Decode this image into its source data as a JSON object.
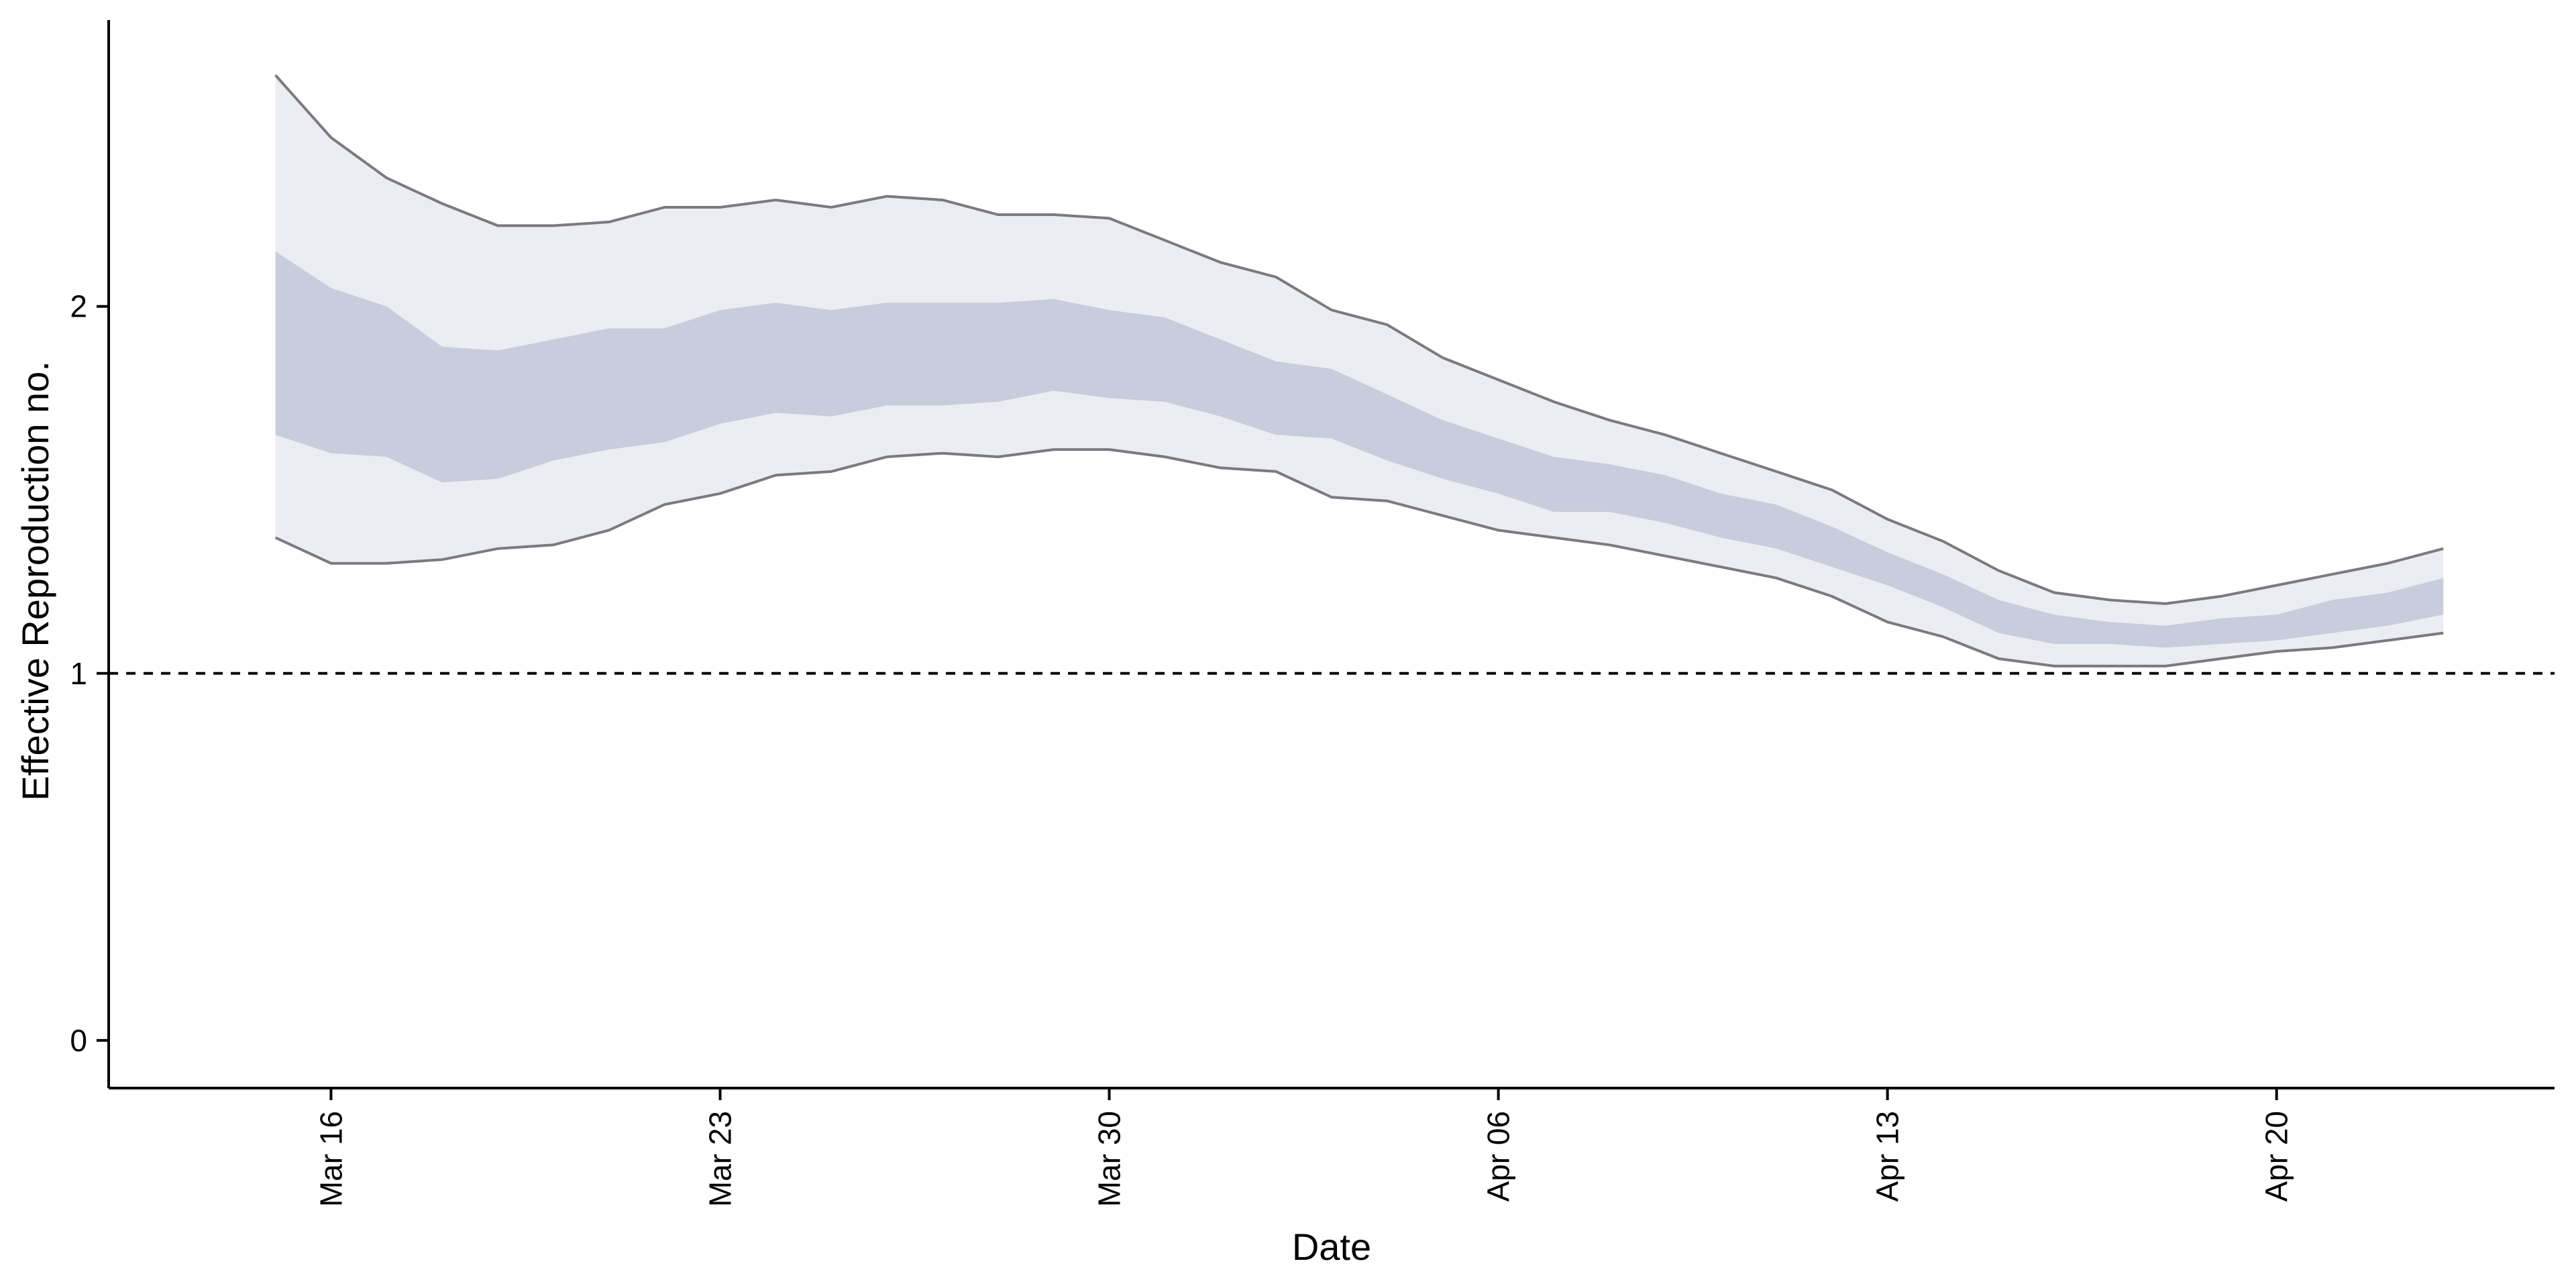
{
  "chart_data": {
    "type": "area",
    "title": "",
    "xlabel": "Date",
    "ylabel": "Effective Reproduction no.",
    "x_ticks": [
      {
        "date": "2020-03-16",
        "label": "Mar 16"
      },
      {
        "date": "2020-03-23",
        "label": "Mar 23"
      },
      {
        "date": "2020-03-30",
        "label": "Mar 30"
      },
      {
        "date": "2020-04-06",
        "label": "Apr 06"
      },
      {
        "date": "2020-04-13",
        "label": "Apr 13"
      },
      {
        "date": "2020-04-20",
        "label": "Apr 20"
      }
    ],
    "y_ticks": [
      {
        "value": 0,
        "label": "0"
      },
      {
        "value": 1,
        "label": "1"
      },
      {
        "value": 2,
        "label": "2"
      }
    ],
    "xlim": [
      "2020-03-12",
      "2020-04-25"
    ],
    "ylim": [
      -0.13,
      2.78
    ],
    "reference_line": {
      "y": 1,
      "style": "dashed"
    },
    "grid": false,
    "colors": {
      "outer_band": "#ecedf2",
      "inner_band": "#c7cddc",
      "outline": "#7a7a80",
      "axis": "#000000",
      "reference": "#000000"
    },
    "x": [
      "2020-03-15",
      "2020-03-16",
      "2020-03-17",
      "2020-03-18",
      "2020-03-19",
      "2020-03-20",
      "2020-03-21",
      "2020-03-22",
      "2020-03-23",
      "2020-03-24",
      "2020-03-25",
      "2020-03-26",
      "2020-03-27",
      "2020-03-28",
      "2020-03-29",
      "2020-03-30",
      "2020-03-31",
      "2020-04-01",
      "2020-04-02",
      "2020-04-03",
      "2020-04-04",
      "2020-04-05",
      "2020-04-06",
      "2020-04-07",
      "2020-04-08",
      "2020-04-09",
      "2020-04-10",
      "2020-04-11",
      "2020-04-12",
      "2020-04-13",
      "2020-04-14",
      "2020-04-15",
      "2020-04-16",
      "2020-04-17",
      "2020-04-18",
      "2020-04-19",
      "2020-04-20",
      "2020-04-21",
      "2020-04-22",
      "2020-04-23"
    ],
    "series": [
      {
        "role": "outer_interval",
        "lower": [
          1.37,
          1.3,
          1.3,
          1.31,
          1.34,
          1.35,
          1.39,
          1.46,
          1.49,
          1.54,
          1.55,
          1.59,
          1.6,
          1.59,
          1.61,
          1.61,
          1.59,
          1.56,
          1.55,
          1.48,
          1.47,
          1.43,
          1.39,
          1.37,
          1.35,
          1.32,
          1.29,
          1.26,
          1.21,
          1.14,
          1.1,
          1.04,
          1.02,
          1.02,
          1.02,
          1.04,
          1.06,
          1.07,
          1.09,
          1.11
        ],
        "upper": [
          2.63,
          2.46,
          2.35,
          2.28,
          2.22,
          2.22,
          2.23,
          2.27,
          2.27,
          2.29,
          2.27,
          2.3,
          2.29,
          2.25,
          2.25,
          2.24,
          2.18,
          2.12,
          2.08,
          1.99,
          1.95,
          1.86,
          1.8,
          1.74,
          1.69,
          1.65,
          1.6,
          1.55,
          1.5,
          1.42,
          1.36,
          1.28,
          1.22,
          1.2,
          1.19,
          1.21,
          1.24,
          1.27,
          1.3,
          1.34
        ]
      },
      {
        "role": "inner_interval",
        "lower": [
          1.65,
          1.6,
          1.59,
          1.52,
          1.53,
          1.58,
          1.61,
          1.63,
          1.68,
          1.71,
          1.7,
          1.73,
          1.73,
          1.74,
          1.77,
          1.75,
          1.74,
          1.7,
          1.65,
          1.64,
          1.58,
          1.53,
          1.49,
          1.44,
          1.44,
          1.41,
          1.37,
          1.34,
          1.29,
          1.24,
          1.18,
          1.11,
          1.08,
          1.08,
          1.07,
          1.08,
          1.09,
          1.11,
          1.13,
          1.16
        ],
        "upper": [
          2.15,
          2.05,
          2.0,
          1.89,
          1.88,
          1.91,
          1.94,
          1.94,
          1.99,
          2.01,
          1.99,
          2.01,
          2.01,
          2.01,
          2.02,
          1.99,
          1.97,
          1.91,
          1.85,
          1.83,
          1.76,
          1.69,
          1.64,
          1.59,
          1.57,
          1.54,
          1.49,
          1.46,
          1.4,
          1.33,
          1.27,
          1.2,
          1.16,
          1.14,
          1.13,
          1.15,
          1.16,
          1.2,
          1.22,
          1.26
        ]
      }
    ]
  }
}
